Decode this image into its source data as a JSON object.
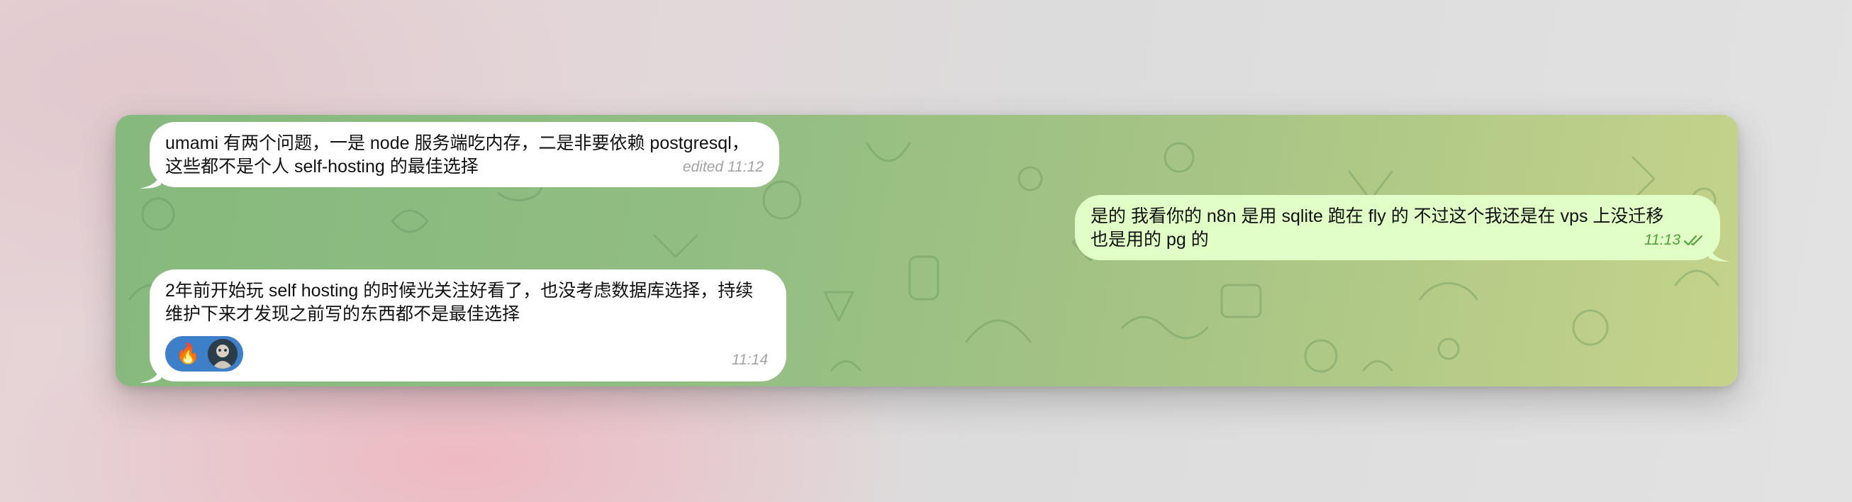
{
  "chat": {
    "messages": [
      {
        "direction": "incoming",
        "text": "umami 有两个问题，一是 node 服务端吃内存，二是非要依赖 postgresql，\n这些都不是个人 self-hosting 的最佳选择",
        "edited_label": "edited",
        "time": "11:12",
        "meta": "edited 11:12"
      },
      {
        "direction": "outgoing",
        "text": "是的 我看你的 n8n 是用 sqlite 跑在 fly 的 不过这个我还是在 vps 上没迁移\n也是用的 pg 的",
        "time": "11:13",
        "status": "read",
        "status_icon": "double-check-icon"
      },
      {
        "direction": "incoming",
        "text": "2年前开始玩 self hosting 的时候光关注好看了，也没考虑数据库选择，持续\n维护下来才发现之前写的东西都不是最佳选择",
        "time": "11:14",
        "reactions": [
          {
            "emoji": "🔥"
          },
          {
            "icon": "user-avatar-icon"
          }
        ]
      }
    ]
  },
  "colors": {
    "incoming_bubble": "#ffffff",
    "outgoing_bubble": "#e1fec6",
    "outgoing_meta": "#4fa23a",
    "incoming_meta": "#a3a3a3",
    "reaction_pill": "#3d7fc8",
    "wallpaper_left": "#86b97d",
    "wallpaper_right": "#c5d38a"
  }
}
